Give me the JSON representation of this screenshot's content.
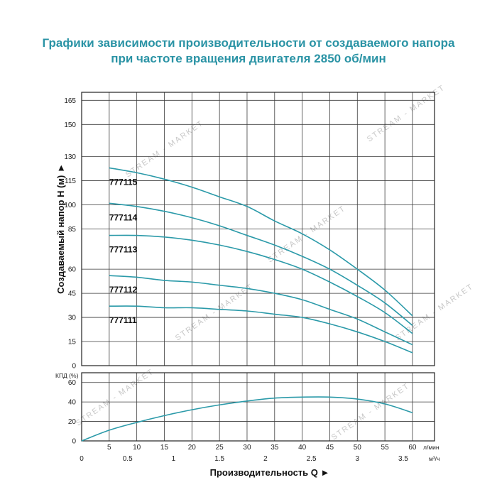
{
  "title_line1": "Графики зависимости производительности от создаваемого напора",
  "title_line2": "при частоте вращения двигателя 2850 об/мин",
  "watermark": "STREAM - MARKET",
  "colors": {
    "title": "#2a93a5",
    "curve": "#2b9aa9"
  },
  "chart_data": [
    {
      "type": "line",
      "ylabel": "Создаваемый напор H (м) ►",
      "ylim": [
        0,
        170
      ],
      "yticks": [
        0,
        15,
        30,
        45,
        60,
        85,
        100,
        115,
        130,
        150,
        165
      ],
      "xlim": [
        0,
        64
      ],
      "xticks": [
        0,
        5,
        10,
        15,
        20,
        25,
        30,
        35,
        40,
        45,
        50,
        55,
        60
      ],
      "grid": true,
      "series": [
        {
          "name": "777115",
          "x": [
            5,
            10,
            15,
            20,
            25,
            30,
            35,
            40,
            45,
            50,
            55,
            60
          ],
          "y": [
            123,
            120,
            116,
            111,
            105,
            99,
            90,
            82,
            72,
            60,
            47,
            31
          ]
        },
        {
          "name": "777114",
          "x": [
            5,
            10,
            15,
            20,
            25,
            30,
            35,
            40,
            45,
            50,
            55,
            60
          ],
          "y": [
            101,
            99,
            96,
            92,
            87,
            81,
            75,
            68,
            60,
            50,
            39,
            25
          ]
        },
        {
          "name": "777113",
          "x": [
            5,
            10,
            15,
            20,
            25,
            30,
            35,
            40,
            45,
            50,
            55,
            60
          ],
          "y": [
            81,
            81,
            80,
            78,
            75,
            71,
            66,
            60,
            52,
            43,
            33,
            20
          ]
        },
        {
          "name": "777112",
          "x": [
            5,
            10,
            15,
            20,
            25,
            30,
            35,
            40,
            45,
            50,
            55,
            60
          ],
          "y": [
            56,
            55,
            53,
            52,
            50,
            48,
            45,
            41,
            35,
            29,
            21,
            13
          ]
        },
        {
          "name": "777111",
          "x": [
            5,
            10,
            15,
            20,
            25,
            30,
            35,
            40,
            45,
            50,
            55,
            60
          ],
          "y": [
            37,
            37,
            36,
            36,
            35,
            34,
            32,
            30,
            26,
            21,
            15,
            8
          ]
        }
      ]
    },
    {
      "type": "line",
      "ylabel": "КПД (%)",
      "ylim": [
        0,
        70
      ],
      "yticks": [
        0,
        20,
        40,
        60
      ],
      "xlabel": "Производительность Q ►",
      "xunit_top": "л/мин",
      "xunit_bottom": "м³/ч",
      "xlim": [
        0,
        64
      ],
      "xticks_top": [
        5,
        10,
        15,
        20,
        25,
        30,
        35,
        40,
        45,
        50,
        55,
        60
      ],
      "xticks_bottom": [
        0,
        0.5,
        1,
        1.5,
        2,
        2.5,
        3,
        3.5
      ],
      "grid": true,
      "series": [
        {
          "x": [
            0,
            5,
            10,
            15,
            20,
            25,
            30,
            35,
            40,
            45,
            50,
            55,
            60
          ],
          "y": [
            0,
            11,
            19,
            26,
            32,
            37,
            41,
            44,
            45,
            45,
            43,
            38,
            29
          ]
        }
      ]
    }
  ]
}
